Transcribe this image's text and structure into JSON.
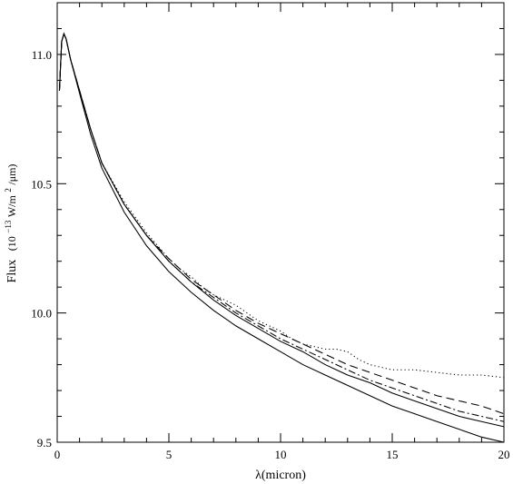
{
  "chart_data": {
    "type": "line",
    "title": "",
    "xlabel": "λ(micron)",
    "ylabel": {
      "main": "Flux",
      "units_prefix": "(10",
      "units_exp1": "−13",
      "units_mid": " W/m",
      "units_exp2": "2",
      "units_suffix": "/μm)"
    },
    "xlim": [
      0,
      20
    ],
    "ylim": [
      9.5,
      11.2
    ],
    "grid": false,
    "legend": "none",
    "x_ticks": [
      0,
      5,
      10,
      15,
      20
    ],
    "x_tick_labels": [
      "0",
      "5",
      "10",
      "15",
      "20"
    ],
    "y_ticks": [
      9.5,
      10.0,
      10.5,
      11.0
    ],
    "y_tick_labels": [
      "9.5",
      "10.0",
      "10.5",
      "11.0"
    ],
    "series": [
      {
        "style": "solid",
        "points": [
          [
            0.1,
            10.86
          ],
          [
            0.2,
            11.05
          ],
          [
            0.3,
            11.08
          ],
          [
            0.4,
            11.06
          ],
          [
            0.6,
            10.98
          ],
          [
            1,
            10.85
          ],
          [
            1.5,
            10.69
          ],
          [
            2,
            10.56
          ],
          [
            3,
            10.39
          ],
          [
            4,
            10.26
          ],
          [
            5,
            10.16
          ],
          [
            6,
            10.08
          ],
          [
            7,
            10.01
          ],
          [
            8,
            9.95
          ],
          [
            9,
            9.9
          ],
          [
            10,
            9.85
          ],
          [
            11,
            9.8
          ],
          [
            12,
            9.76
          ],
          [
            13,
            9.72
          ],
          [
            14,
            9.68
          ],
          [
            15,
            9.64
          ],
          [
            16,
            9.61
          ],
          [
            17,
            9.58
          ],
          [
            18,
            9.55
          ],
          [
            19,
            9.52
          ],
          [
            20,
            9.5
          ]
        ]
      },
      {
        "style": "solid",
        "points": [
          [
            0.1,
            10.86
          ],
          [
            0.2,
            11.05
          ],
          [
            0.3,
            11.08
          ],
          [
            0.4,
            11.06
          ],
          [
            0.6,
            10.98
          ],
          [
            1,
            10.86
          ],
          [
            1.5,
            10.71
          ],
          [
            2,
            10.58
          ],
          [
            3,
            10.42
          ],
          [
            4,
            10.3
          ],
          [
            5,
            10.2
          ],
          [
            6,
            10.12
          ],
          [
            7,
            10.05
          ],
          [
            8,
            9.99
          ],
          [
            9,
            9.94
          ],
          [
            10,
            9.89
          ],
          [
            11,
            9.85
          ],
          [
            12,
            9.8
          ],
          [
            13,
            9.76
          ],
          [
            14,
            9.73
          ],
          [
            15,
            9.69
          ],
          [
            16,
            9.66
          ],
          [
            17,
            9.63
          ],
          [
            18,
            9.6
          ],
          [
            19,
            9.58
          ],
          [
            20,
            9.56
          ]
        ]
      },
      {
        "style": "dash-dot",
        "points": [
          [
            0.1,
            10.86
          ],
          [
            0.2,
            11.05
          ],
          [
            0.3,
            11.08
          ],
          [
            0.4,
            11.06
          ],
          [
            0.6,
            10.98
          ],
          [
            1,
            10.86
          ],
          [
            1.5,
            10.71
          ],
          [
            2,
            10.58
          ],
          [
            3,
            10.42
          ],
          [
            4,
            10.3
          ],
          [
            5,
            10.2
          ],
          [
            6,
            10.12
          ],
          [
            7,
            10.06
          ],
          [
            8,
            10.0
          ],
          [
            9,
            9.95
          ],
          [
            10,
            9.9
          ],
          [
            11,
            9.86
          ],
          [
            12,
            9.82
          ],
          [
            13,
            9.78
          ],
          [
            14,
            9.74
          ],
          [
            15,
            9.71
          ],
          [
            16,
            9.68
          ],
          [
            17,
            9.65
          ],
          [
            18,
            9.62
          ],
          [
            19,
            9.6
          ],
          [
            20,
            9.58
          ]
        ]
      },
      {
        "style": "dashed",
        "points": [
          [
            0.1,
            10.86
          ],
          [
            0.2,
            11.05
          ],
          [
            0.3,
            11.08
          ],
          [
            0.4,
            11.06
          ],
          [
            0.6,
            10.98
          ],
          [
            1,
            10.86
          ],
          [
            1.5,
            10.71
          ],
          [
            2,
            10.58
          ],
          [
            3,
            10.42
          ],
          [
            4,
            10.3
          ],
          [
            5,
            10.21
          ],
          [
            6,
            10.13
          ],
          [
            7,
            10.07
          ],
          [
            8,
            10.01
          ],
          [
            9,
            9.96
          ],
          [
            10,
            9.92
          ],
          [
            11,
            9.88
          ],
          [
            12,
            9.84
          ],
          [
            13,
            9.8
          ],
          [
            14,
            9.77
          ],
          [
            15,
            9.74
          ],
          [
            16,
            9.71
          ],
          [
            17,
            9.68
          ],
          [
            18,
            9.66
          ],
          [
            19,
            9.64
          ],
          [
            20,
            9.61
          ]
        ]
      },
      {
        "style": "dotted",
        "points": [
          [
            0.1,
            10.86
          ],
          [
            0.2,
            11.05
          ],
          [
            0.3,
            11.08
          ],
          [
            0.4,
            11.06
          ],
          [
            0.6,
            10.98
          ],
          [
            1,
            10.86
          ],
          [
            1.5,
            10.71
          ],
          [
            2,
            10.58
          ],
          [
            3,
            10.43
          ],
          [
            4,
            10.31
          ],
          [
            4.5,
            10.26
          ],
          [
            5,
            10.21
          ],
          [
            5.5,
            10.17
          ],
          [
            6,
            10.14
          ],
          [
            6.5,
            10.1
          ],
          [
            7,
            10.07
          ],
          [
            7.5,
            10.05
          ],
          [
            8,
            10.03
          ],
          [
            8.5,
            10.0
          ],
          [
            9,
            9.97
          ],
          [
            9.5,
            9.95
          ],
          [
            10,
            9.93
          ],
          [
            10.5,
            9.9
          ],
          [
            11,
            9.88
          ],
          [
            11.5,
            9.87
          ],
          [
            12,
            9.86
          ],
          [
            12.5,
            9.86
          ],
          [
            13,
            9.85
          ],
          [
            13.5,
            9.82
          ],
          [
            14,
            9.8
          ],
          [
            14.5,
            9.79
          ],
          [
            15,
            9.78
          ],
          [
            16,
            9.78
          ],
          [
            17,
            9.77
          ],
          [
            18,
            9.76
          ],
          [
            19,
            9.76
          ],
          [
            20,
            9.75
          ]
        ]
      }
    ]
  }
}
